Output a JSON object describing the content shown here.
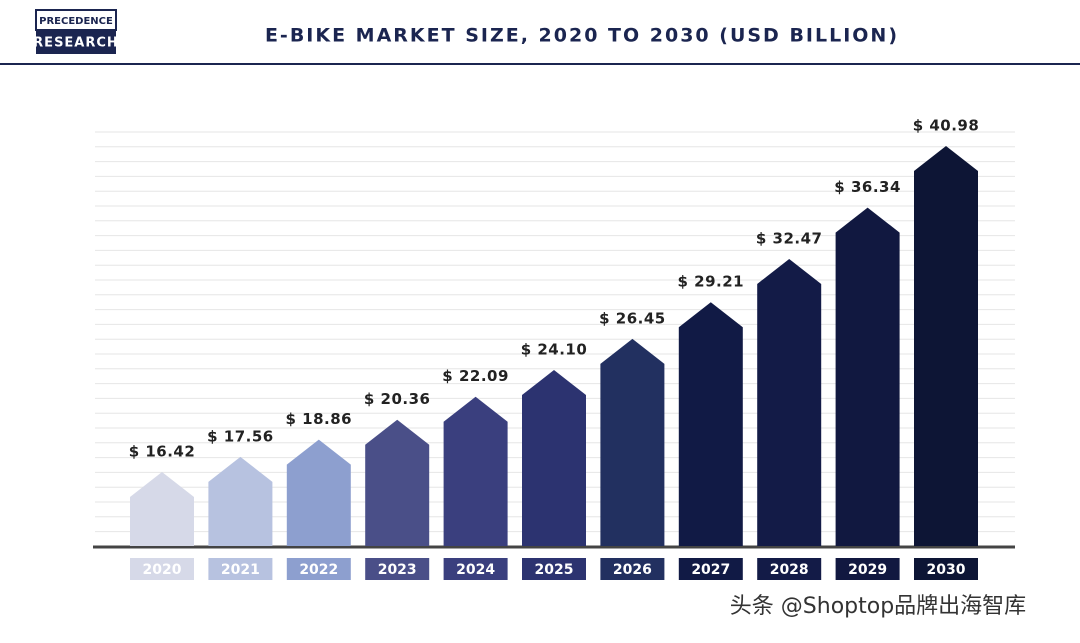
{
  "logo": [
    "PRECEDENCE",
    "RESEARCH"
  ],
  "watermark": "头条 @Shoptop品牌出海智库",
  "chart_data": {
    "type": "bar",
    "title": "E-BIKE MARKET SIZE, 2020 TO 2030 (USD BILLION)",
    "categories": [
      "2020",
      "2021",
      "2022",
      "2023",
      "2024",
      "2025",
      "2026",
      "2027",
      "2028",
      "2029",
      "2030"
    ],
    "values": [
      16.42,
      17.56,
      18.86,
      20.36,
      22.09,
      24.1,
      26.45,
      29.21,
      32.47,
      36.34,
      40.98
    ],
    "value_labels": [
      "$ 16.42",
      "$ 17.56",
      "$ 18.86",
      "$ 20.36",
      "$ 22.09",
      "$ 24.10",
      "$ 26.45",
      "$ 29.21",
      "$ 32.47",
      "$ 36.34",
      "$ 40.98"
    ],
    "colors": [
      "#d6d9e8",
      "#b7c2e0",
      "#8d9fcf",
      "#4a4f88",
      "#3a3f7e",
      "#2c3370",
      "#223060",
      "#111a45",
      "#131b47",
      "#111840",
      "#0d1535"
    ]
  }
}
